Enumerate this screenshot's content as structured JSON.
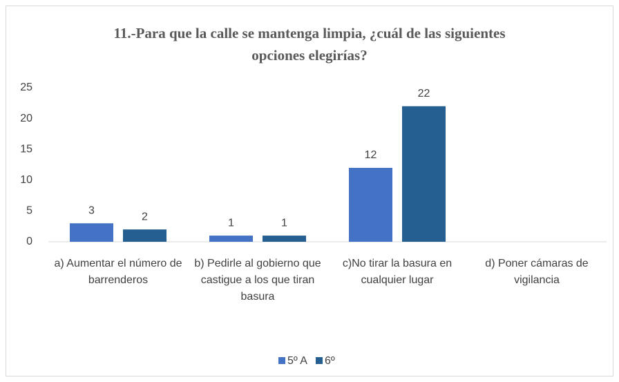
{
  "chart_data": {
    "type": "bar",
    "title": "11.-Para que la calle se mantenga limpia, ¿cuál de las siguientes opciones elegirías?",
    "categories": [
      "a) Aumentar el número de barrenderos",
      "b) Pedirle al gobierno que castigue a los que tiran basura",
      "c)No tirar la basura en cualquier lugar",
      "d) Poner cámaras de vigilancia"
    ],
    "series": [
      {
        "name": "5º A",
        "color": "#4472c4",
        "values": [
          3,
          1,
          12,
          null
        ]
      },
      {
        "name": "6º",
        "color": "#255e91",
        "values": [
          2,
          1,
          22,
          null
        ]
      }
    ],
    "ylim": [
      0,
      25
    ],
    "yticks": [
      0,
      5,
      10,
      15,
      20,
      25
    ],
    "grid": false,
    "legend": "bottom"
  }
}
